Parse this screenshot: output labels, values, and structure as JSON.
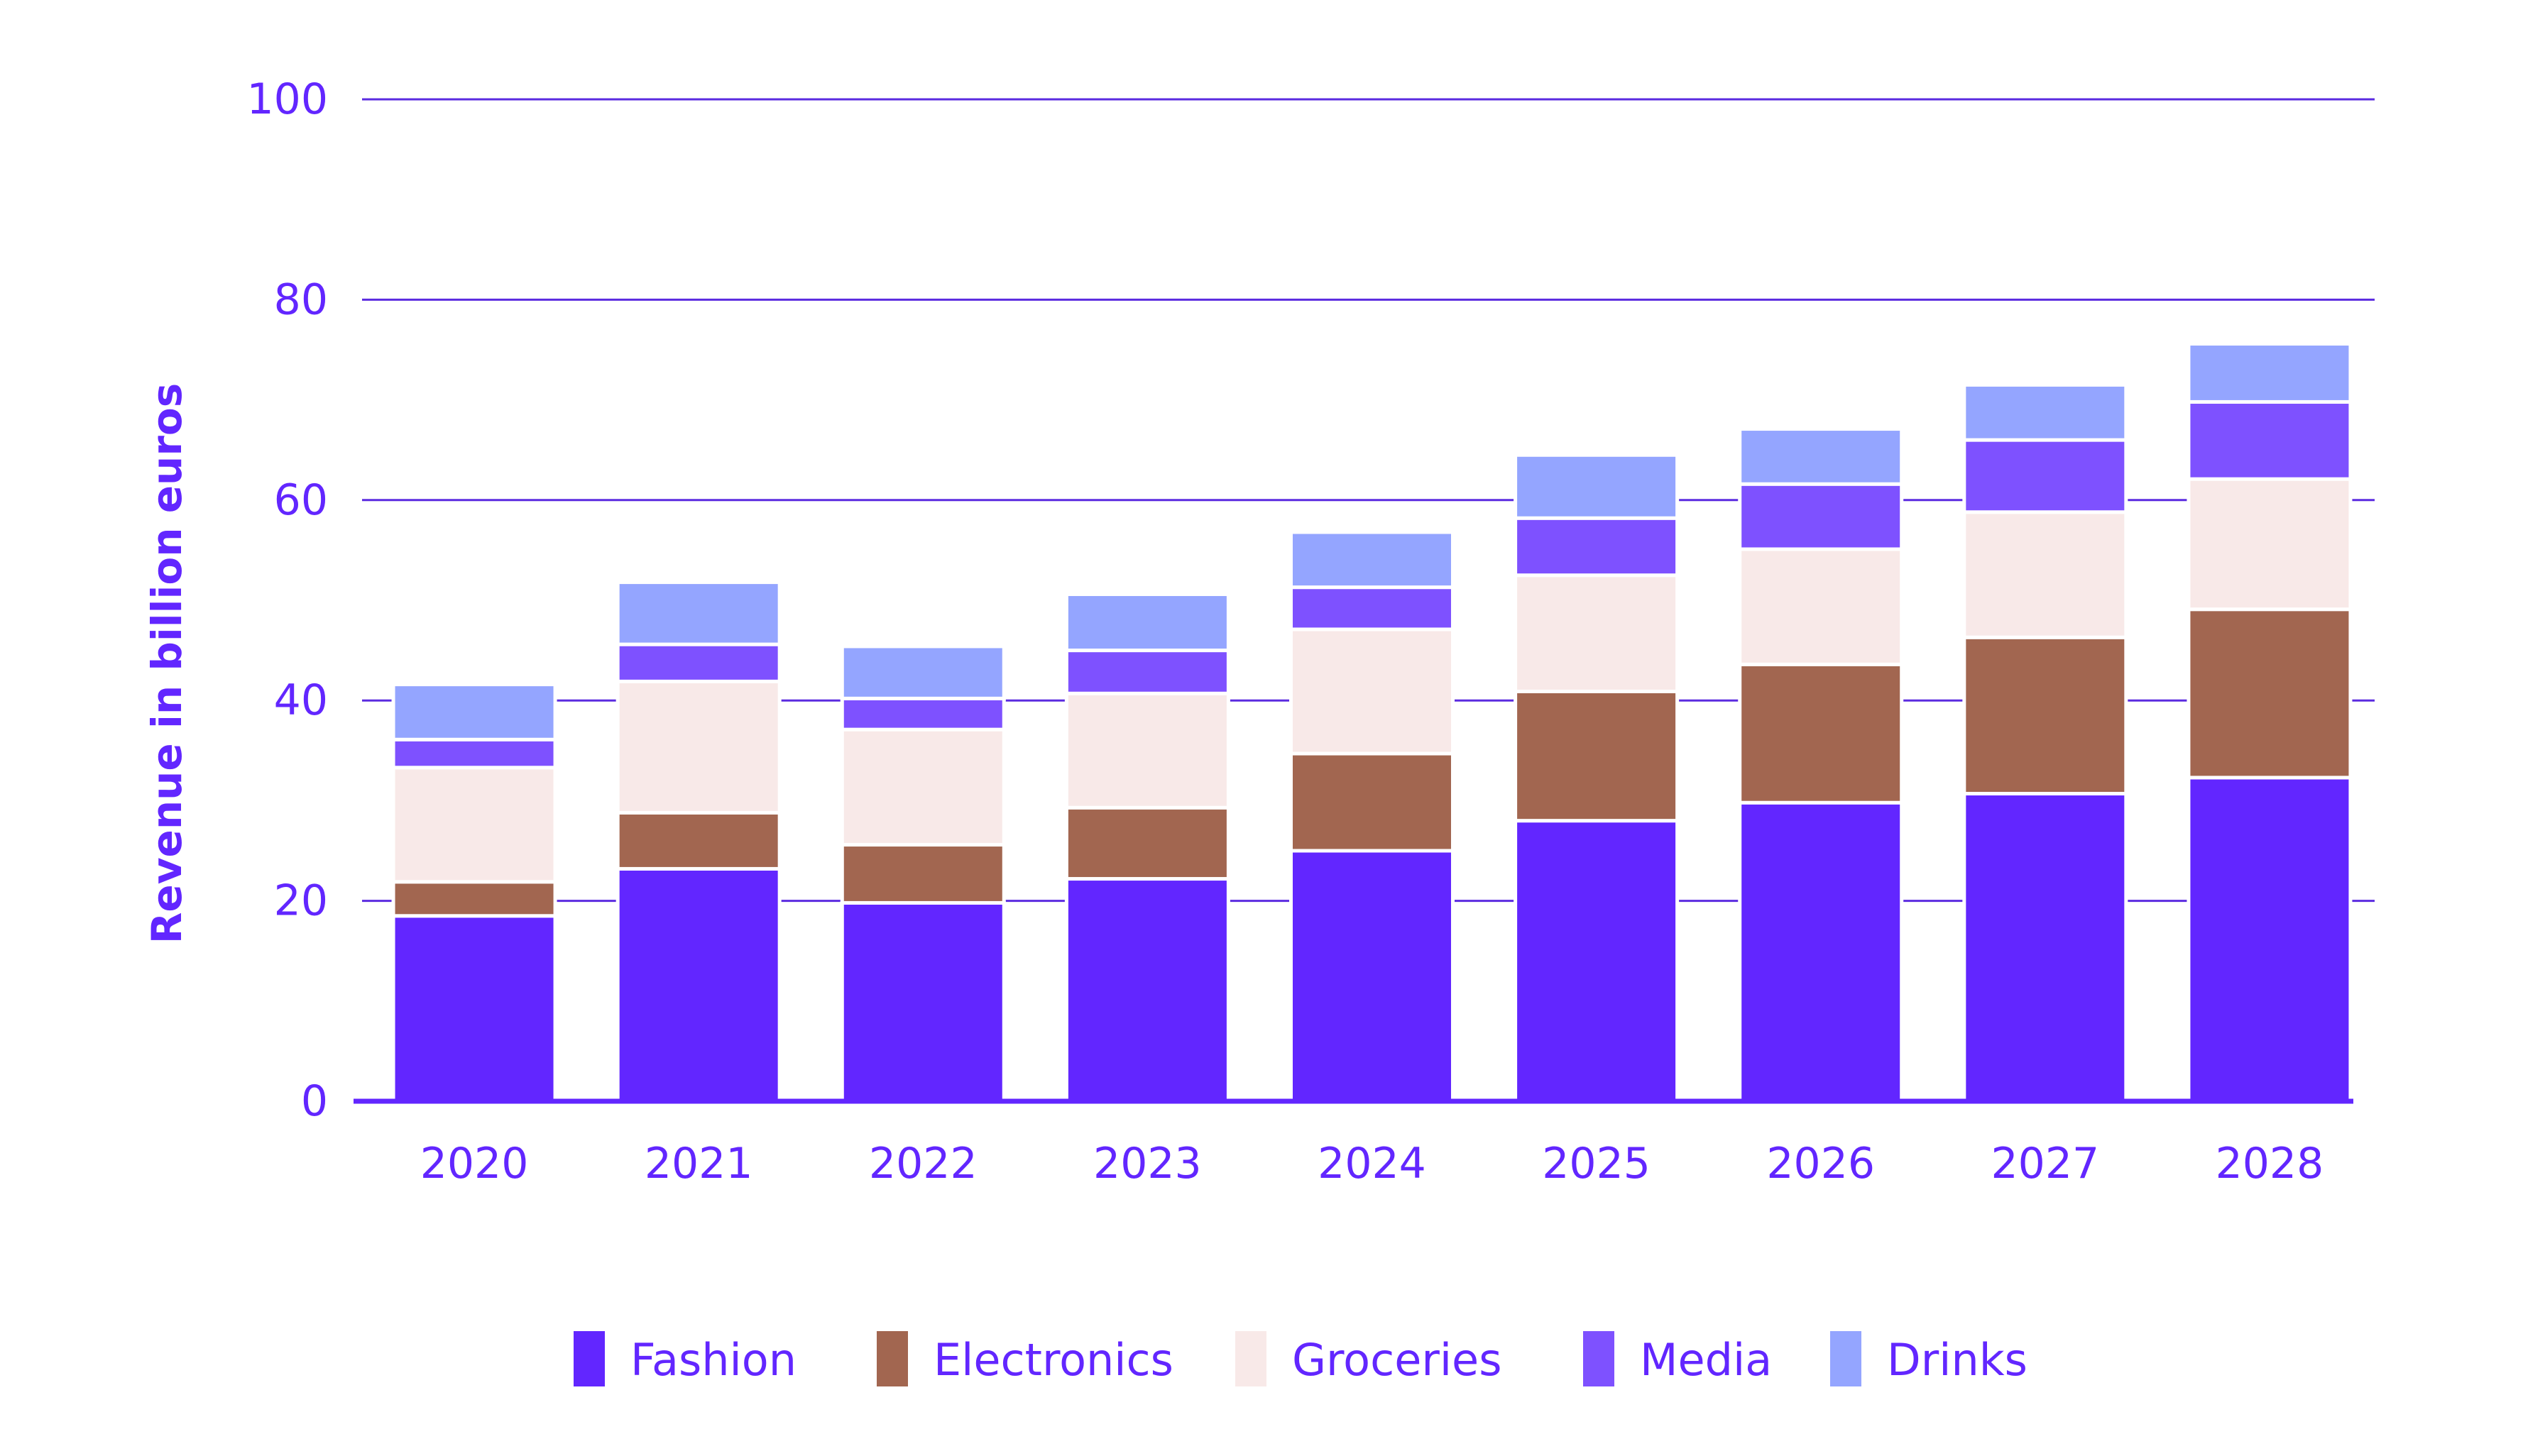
{
  "colors": {
    "axis_text": "#6226FF",
    "grid": "#5B2BE0",
    "axis_line": "#6226FF",
    "separator": "#FFFFFF"
  },
  "chart_data": {
    "type": "bar",
    "stacked": true,
    "title": "",
    "xlabel": "",
    "ylabel": "Revenue in billion euros",
    "ylim": [
      0,
      100
    ],
    "yticks": [
      0,
      20,
      40,
      60,
      80,
      100
    ],
    "grid": true,
    "legend_position": "bottom",
    "categories": [
      "2020",
      "2021",
      "2022",
      "2023",
      "2024",
      "2025",
      "2026",
      "2027",
      "2028"
    ],
    "series": [
      {
        "name": "Fashion",
        "color": "#6226FF",
        "values": [
          18.5,
          23.2,
          19.8,
          22.2,
          25.0,
          28.0,
          29.8,
          30.7,
          32.3
        ]
      },
      {
        "name": "Electronics",
        "color": "#A26650",
        "values": [
          3.4,
          5.6,
          5.8,
          7.1,
          9.7,
          12.9,
          13.8,
          15.6,
          16.8
        ]
      },
      {
        "name": "Groceries",
        "color": "#F8E9E8",
        "values": [
          11.4,
          13.1,
          11.5,
          11.4,
          12.4,
          11.6,
          11.5,
          12.5,
          13.0
        ]
      },
      {
        "name": "Media",
        "color": "#7E51FF",
        "values": [
          2.8,
          3.7,
          3.1,
          4.3,
          4.2,
          5.7,
          6.5,
          7.2,
          7.7
        ]
      },
      {
        "name": "Drinks",
        "color": "#94A5FF",
        "values": [
          5.5,
          6.2,
          5.2,
          5.6,
          5.5,
          6.3,
          5.5,
          5.5,
          5.8
        ]
      }
    ]
  }
}
